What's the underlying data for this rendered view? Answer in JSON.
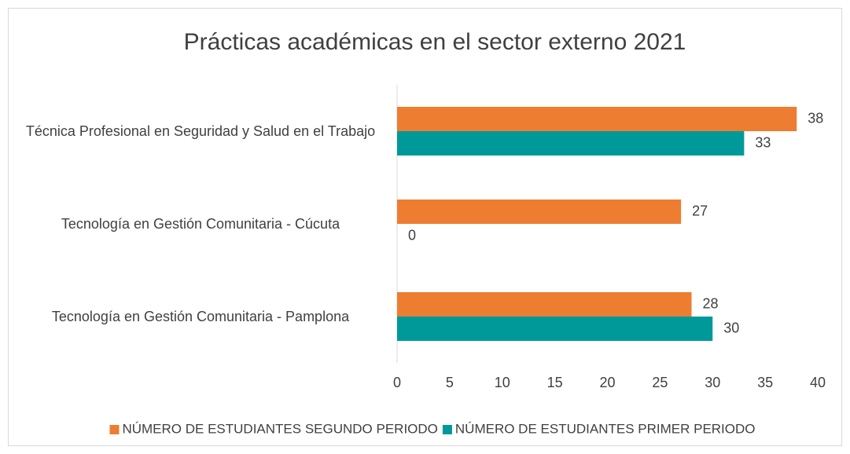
{
  "chart_data": {
    "type": "hbar",
    "title": "Prácticas académicas en el sector externo 2021",
    "categories": [
      "Técnica Profesional en Seguridad y Salud en el Trabajo",
      "Tecnología en Gestión Comunitaria - Cúcuta",
      "Tecnología en Gestión Comunitaria - Pamplona"
    ],
    "series": [
      {
        "name": "NÚMERO DE ESTUDIANTES SEGUNDO PERIODO",
        "color": "#ed7d31",
        "values": [
          38,
          27,
          28
        ]
      },
      {
        "name": "NÚMERO DE ESTUDIANTES PRIMER PERIODO",
        "color": "#009999",
        "values": [
          33,
          0,
          30
        ]
      }
    ],
    "xlim": [
      0,
      40
    ],
    "xticks": [
      0,
      5,
      10,
      15,
      20,
      25,
      30,
      35,
      40
    ],
    "grid": false,
    "legend": "bottom"
  }
}
